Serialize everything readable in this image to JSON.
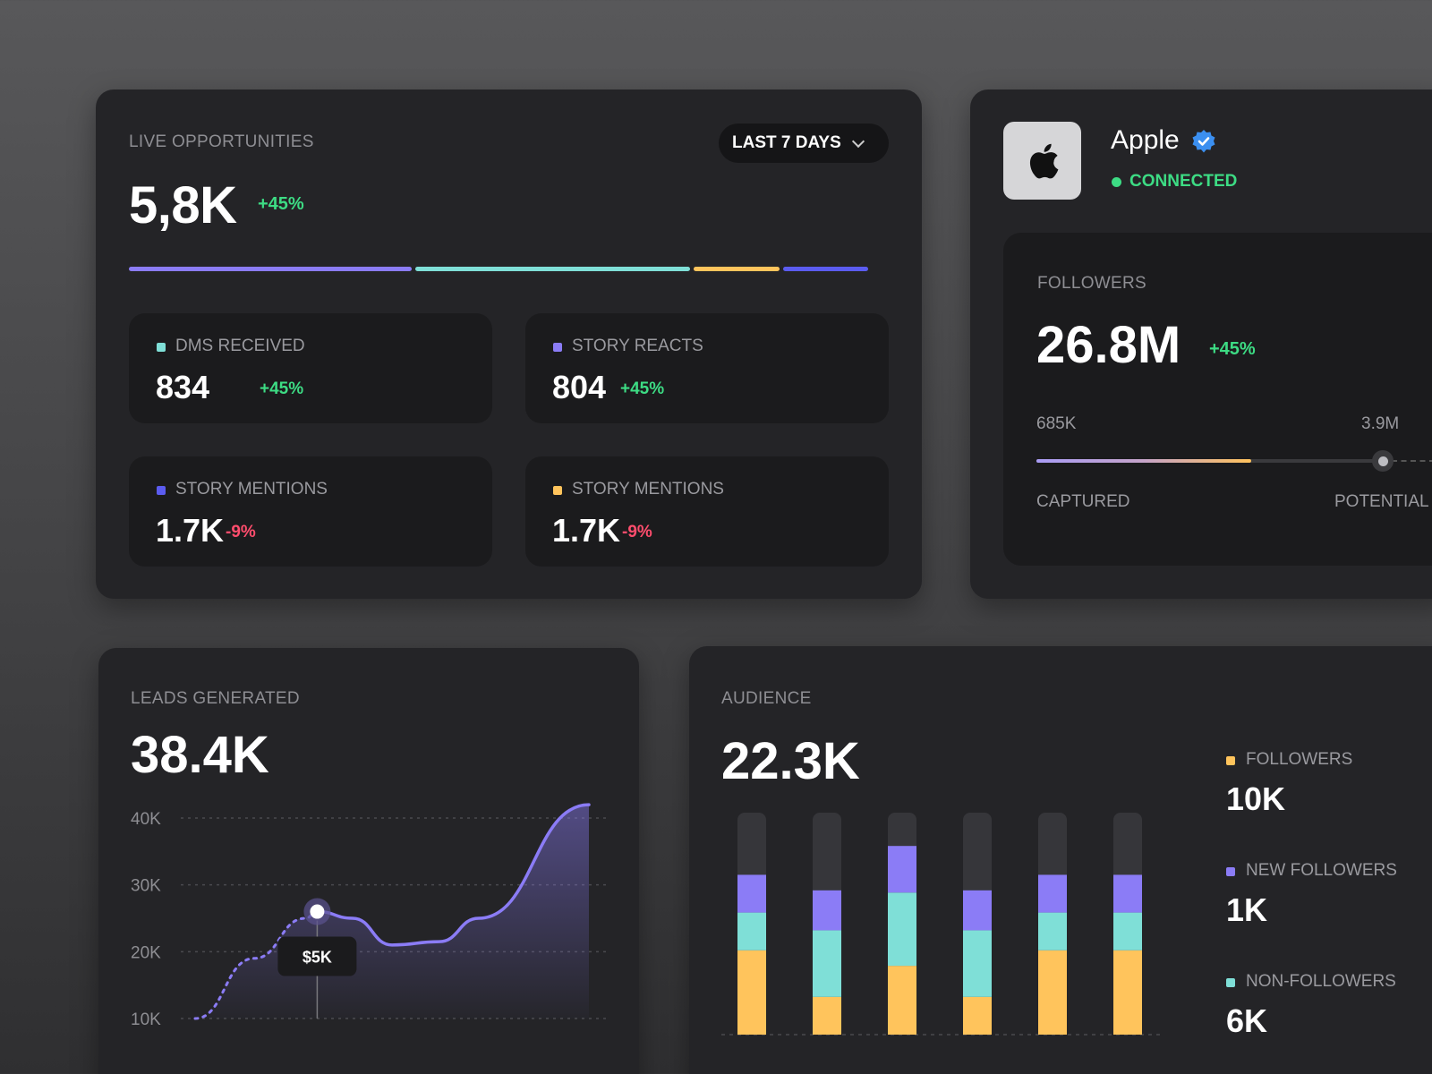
{
  "colors": {
    "purple": "#8b7cf6",
    "teal": "#7fdfd7",
    "yellow": "#ffc45c",
    "blue": "#5b5cf0",
    "up": "#3ddc84",
    "down": "#ff4d6d"
  },
  "live": {
    "title": "LIVE OPPORTUNITIES",
    "value": "5,8K",
    "change": "+45%",
    "range_label": "LAST 7 DAYS",
    "range_icon": "chevron-down-icon",
    "breakdown_fractions": [
      0.38,
      0.37,
      0.115,
      0.115
    ],
    "stats": [
      {
        "name": "DMS RECEIVED",
        "value": "834",
        "change": "+45%",
        "color": "#7fdfd7",
        "trend": "up"
      },
      {
        "name": "STORY REACTS",
        "value": "804",
        "change": "+45%",
        "color": "#8b7cf6",
        "trend": "up"
      },
      {
        "name": "STORY MENTIONS",
        "value": "1.7K",
        "change": "-9%",
        "color": "#5b5cf0",
        "trend": "down"
      },
      {
        "name": "STORY MENTIONS",
        "value": "1.7K",
        "change": "-9%",
        "color": "#ffc45c",
        "trend": "down"
      }
    ]
  },
  "account": {
    "name": "Apple",
    "logo_icon": "apple-logo-icon",
    "verified_icon": "verified-badge-icon",
    "status": "CONNECTED",
    "followers": {
      "title": "FOLLOWERS",
      "value": "26.8M",
      "change": "+45%",
      "range_min": "685K",
      "range_max": "3.9M",
      "captured_fraction": 0.61,
      "knob_fraction": 1.0,
      "captured_label": "CAPTURED",
      "potential_label": "POTENTIAL"
    }
  },
  "leads": {
    "title": "LEADS GENERATED",
    "value": "38.4K",
    "tooltip": "$5K",
    "chart_data": {
      "type": "line",
      "y_ticks": [
        "40K",
        "30K",
        "20K",
        "10K"
      ],
      "ylim": [
        10,
        40
      ],
      "points_k": [
        {
          "x": 0.0,
          "y": 10.0,
          "style": "dashed"
        },
        {
          "x": 0.15,
          "y": 19.0,
          "style": "dashed"
        },
        {
          "x": 0.28,
          "y": 25.0,
          "style": "dashed"
        },
        {
          "x": 0.31,
          "y": 26.0,
          "style": "solid"
        },
        {
          "x": 0.4,
          "y": 25.0,
          "style": "solid"
        },
        {
          "x": 0.5,
          "y": 21.0,
          "style": "solid"
        },
        {
          "x": 0.62,
          "y": 21.5,
          "style": "solid"
        },
        {
          "x": 0.72,
          "y": 25.0,
          "style": "solid"
        },
        {
          "x": 1.0,
          "y": 42.0,
          "style": "solid"
        }
      ],
      "highlight_x": 0.31
    }
  },
  "audience": {
    "title": "AUDIENCE",
    "value": "22.3K",
    "chart_data": {
      "type": "bar",
      "stacked": true,
      "bars": [
        {
          "yellow": 0.38,
          "teal": 0.17,
          "purple": 0.17
        },
        {
          "yellow": 0.17,
          "teal": 0.3,
          "purple": 0.18
        },
        {
          "yellow": 0.31,
          "teal": 0.33,
          "purple": 0.21
        },
        {
          "yellow": 0.17,
          "teal": 0.3,
          "purple": 0.18
        },
        {
          "yellow": 0.38,
          "teal": 0.17,
          "purple": 0.17
        },
        {
          "yellow": 0.38,
          "teal": 0.17,
          "purple": 0.17
        }
      ]
    },
    "legend": [
      {
        "name": "FOLLOWERS",
        "value": "10K",
        "color": "#ffc45c"
      },
      {
        "name": "NEW FOLLOWERS",
        "value": "1K",
        "color": "#8b7cf6"
      },
      {
        "name": "NON-FOLLOWERS",
        "value": "6K",
        "color": "#7fdfd7"
      }
    ]
  }
}
